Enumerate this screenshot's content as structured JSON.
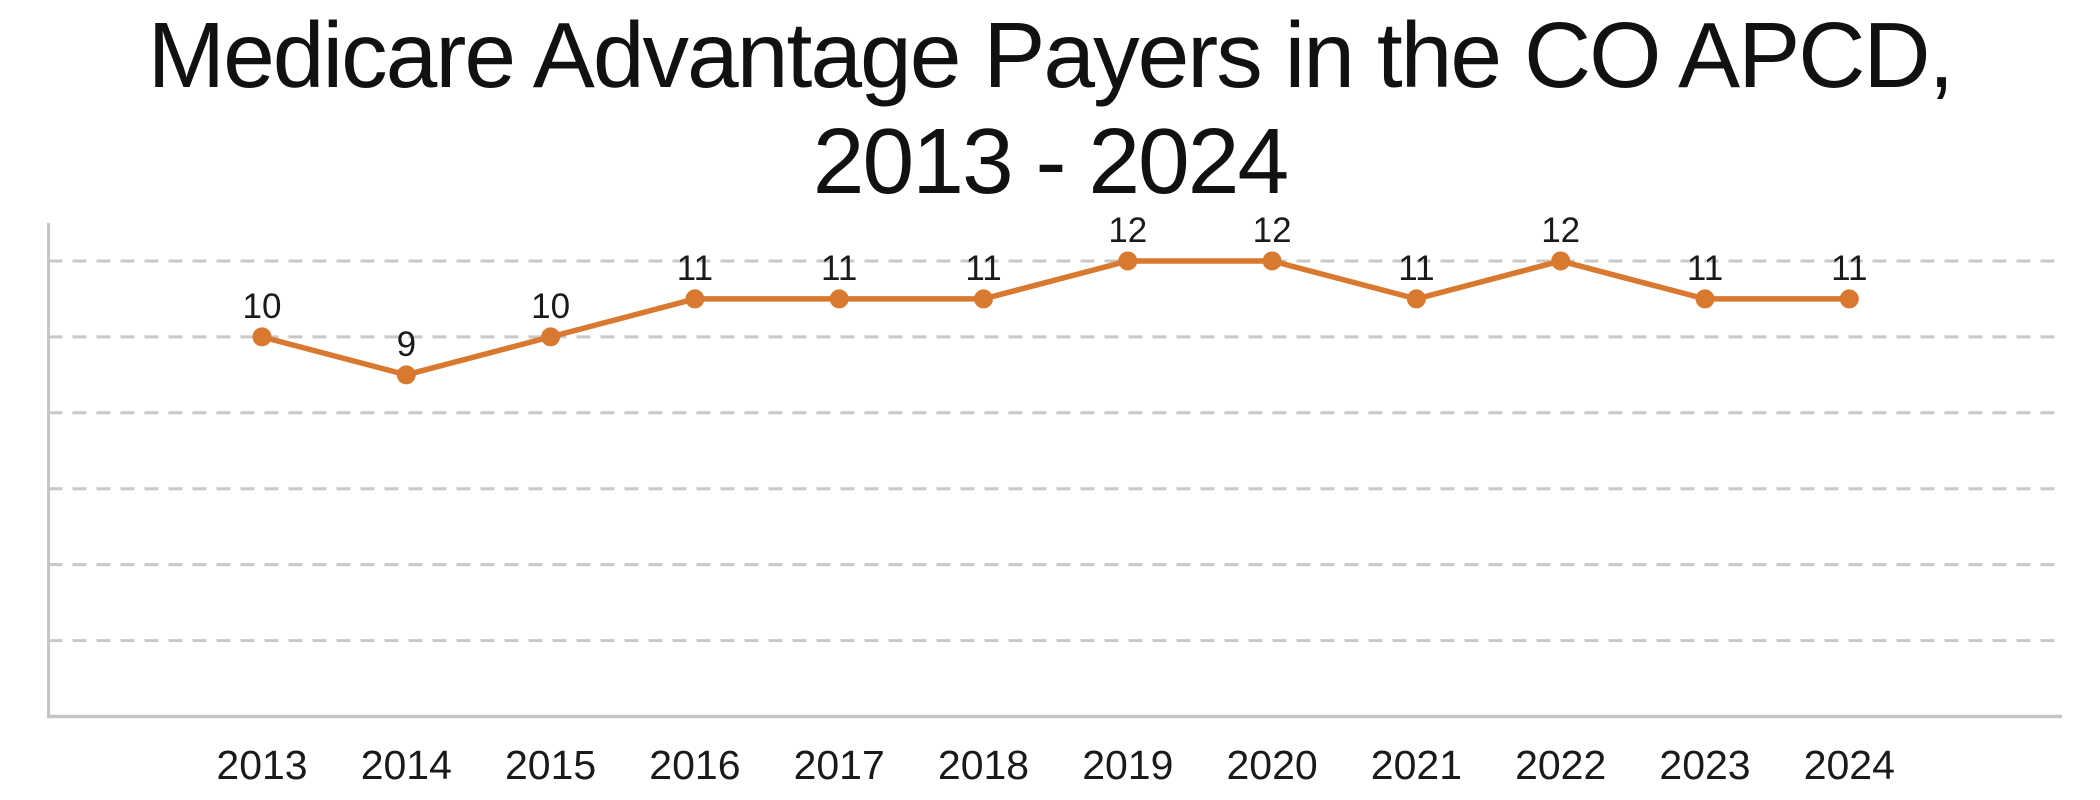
{
  "title": {
    "line1": "Medicare Advantage Payers in the CO APCD,",
    "line2": "2013 - 2024"
  },
  "chart_data": {
    "type": "line",
    "title": "Medicare Advantage Payers in the CO APCD, 2013 - 2024",
    "categories": [
      "2013",
      "2014",
      "2015",
      "2016",
      "2017",
      "2018",
      "2019",
      "2020",
      "2021",
      "2022",
      "2023",
      "2024"
    ],
    "series": [
      {
        "name": "Medicare Advantage Payers",
        "values": [
          10,
          9,
          10,
          11,
          11,
          11,
          12,
          12,
          11,
          12,
          11,
          11
        ]
      }
    ],
    "data_labels_visible": true,
    "xlabel": "",
    "ylabel": "",
    "ylim": [
      0,
      13
    ],
    "yticks": [
      2,
      4,
      6,
      8,
      10,
      12
    ],
    "ytick_labels_visible": false,
    "grid": {
      "horizontal": true,
      "vertical": false,
      "style": "dashed"
    },
    "legend": "none",
    "colors": {
      "series": "#D8792F",
      "gridline": "#C8C8C8",
      "axis": "#C5C5C5",
      "label_text": "#1A1A1A"
    }
  }
}
